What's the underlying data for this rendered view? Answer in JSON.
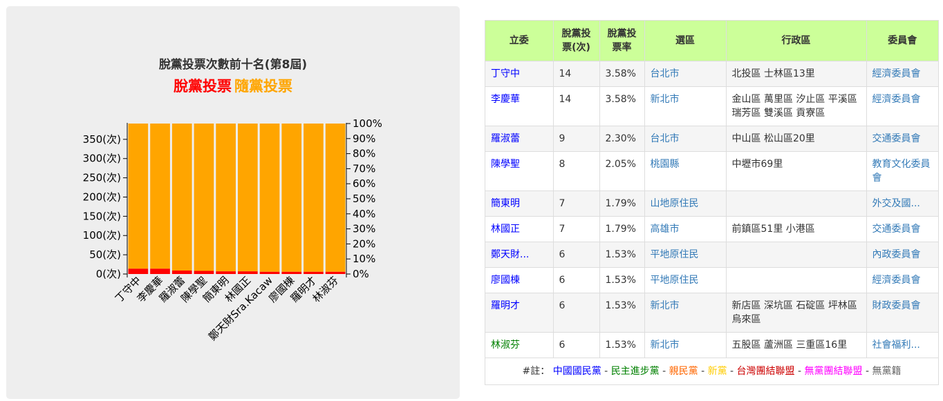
{
  "chart": {
    "title": "脫黨投票次數前十名(第8屆)",
    "legend": [
      {
        "label": "脫黨投票",
        "color": "#ff0000"
      },
      {
        "label": "隨黨投票",
        "color": "#ffa500"
      }
    ]
  },
  "chart_data": {
    "type": "bar",
    "stacked": true,
    "title": "脫黨投票次數前十名(第8屆)",
    "categories": [
      "丁守中",
      "李慶華",
      "羅淑蕾",
      "陳學聖",
      "簡東明",
      "林國正",
      "鄭天財Sra.Kacaw",
      "廖國棟",
      "羅明才",
      "林淑芬"
    ],
    "series": [
      {
        "name": "脫黨投票",
        "color": "#ff0000",
        "values": [
          14,
          14,
          9,
          8,
          7,
          7,
          6,
          6,
          6,
          6
        ]
      },
      {
        "name": "隨黨投票",
        "color": "#ffa500",
        "values": [
          377,
          377,
          382,
          383,
          384,
          384,
          385,
          385,
          385,
          385
        ]
      }
    ],
    "y_left": {
      "ticks": [
        "0(次)",
        "50(次)",
        "100(次)",
        "150(次)",
        "200(次)",
        "250(次)",
        "300(次)",
        "350(次)"
      ],
      "tick_values": [
        0,
        50,
        100,
        150,
        200,
        250,
        300,
        350
      ],
      "range": [
        0,
        391
      ]
    },
    "y_right": {
      "ticks": [
        "0%",
        "10%",
        "20%",
        "30%",
        "40%",
        "50%",
        "60%",
        "70%",
        "80%",
        "90%",
        "100%"
      ],
      "range": [
        0,
        100
      ]
    }
  },
  "table": {
    "headers": [
      "立委",
      "脫黨投票(次)",
      "脫黨投票率",
      "選區",
      "行政區",
      "委員會"
    ],
    "rows": [
      {
        "name": "丁守中",
        "name_color": "#0000ff",
        "count": "14",
        "rate": "3.58%",
        "district": "台北市",
        "admin": "北投區 士林區13里",
        "committee": "經濟委員會",
        "committee_trunc": false
      },
      {
        "name": "李慶華",
        "name_color": "#0000ff",
        "count": "14",
        "rate": "3.58%",
        "district": "新北市",
        "admin": "金山區 萬里區 汐止區 平溪區 瑞芳區 雙溪區 貢寮區",
        "committee": "經濟委員會",
        "committee_trunc": false
      },
      {
        "name": "羅淑蕾",
        "name_color": "#0000ff",
        "count": "9",
        "rate": "2.30%",
        "district": "台北市",
        "admin": "中山區 松山區20里",
        "committee": "交通委員會",
        "committee_trunc": false
      },
      {
        "name": "陳學聖",
        "name_color": "#0000ff",
        "count": "8",
        "rate": "2.05%",
        "district": "桃園縣",
        "admin": "中壢市69里",
        "committee": "教育文化委員會",
        "committee_trunc": false
      },
      {
        "name": "簡東明",
        "name_color": "#0000ff",
        "count": "7",
        "rate": "1.79%",
        "district": "山地原住民",
        "admin": "",
        "committee": "外交及國...",
        "committee_trunc": true
      },
      {
        "name": "林國正",
        "name_color": "#0000ff",
        "count": "7",
        "rate": "1.79%",
        "district": "高雄市",
        "admin": "前鎮區51里 小港區",
        "committee": "交通委員會",
        "committee_trunc": false
      },
      {
        "name": "鄭天財...",
        "name_color": "#0000ff",
        "count": "6",
        "rate": "1.53%",
        "district": "平地原住民",
        "admin": "",
        "committee": "內政委員會",
        "committee_trunc": false
      },
      {
        "name": "廖國棟",
        "name_color": "#0000ff",
        "count": "6",
        "rate": "1.53%",
        "district": "平地原住民",
        "admin": "",
        "committee": "經濟委員會",
        "committee_trunc": false
      },
      {
        "name": "羅明才",
        "name_color": "#0000ff",
        "count": "6",
        "rate": "1.53%",
        "district": "新北市",
        "admin": "新店區 深坑區 石碇區 坪林區 烏來區",
        "committee": "財政委員會",
        "committee_trunc": false
      },
      {
        "name": "林淑芬",
        "name_color": "#008000",
        "count": "6",
        "rate": "1.53%",
        "district": "新北市",
        "admin": "五股區 蘆洲區 三重區16里",
        "committee": "社會福利...",
        "committee_trunc": true
      }
    ],
    "link_color": "#337ab7",
    "note": {
      "prefix": "#註：",
      "items": [
        {
          "label": "中國國民黨",
          "color": "#0000ff"
        },
        {
          "label": "民主進步黨",
          "color": "#008000"
        },
        {
          "label": "親民黨",
          "color": "#ff6600"
        },
        {
          "label": "新黨",
          "color": "#ffcc00"
        },
        {
          "label": "台灣團結聯盟",
          "color": "#cc0000"
        },
        {
          "label": "無黨團結聯盟",
          "color": "#ff00ff"
        },
        {
          "label": "無黨籍",
          "color": "#666666"
        }
      ],
      "separator": " - "
    }
  }
}
